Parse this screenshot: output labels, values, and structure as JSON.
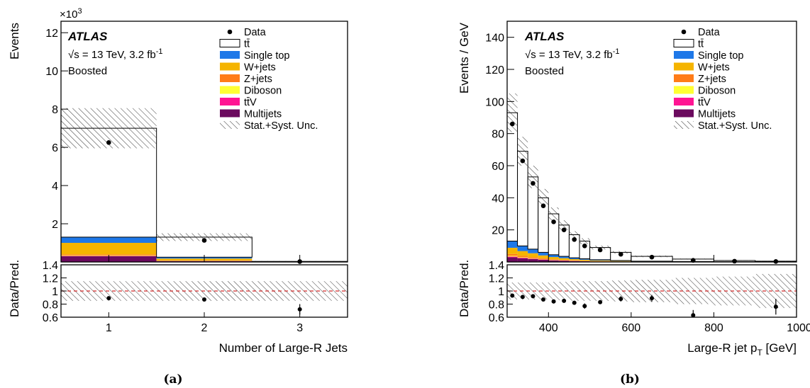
{
  "colors": {
    "single_top": "#1e78e8",
    "w_jets": "#f5b400",
    "z_jets": "#ff7c18",
    "diboson": "#ffff33",
    "ttv": "#ff1493",
    "multijets": "#6b0a5e",
    "ref_line": "#d42a2a"
  },
  "common": {
    "atlas": "ATLAS",
    "energy": "√s = 13 TeV, 3.2 fb",
    "energy_sup": "-1",
    "region": "Boosted",
    "ratio_ylabel": "Data/Pred.",
    "legend": [
      "Data",
      "tt̄",
      "Single top",
      "W+jets",
      "Z+jets",
      "Diboson",
      "tt̄V",
      "Multijets",
      "Stat.+Syst. Unc."
    ]
  },
  "chart_data": [
    {
      "type": "bar",
      "caption": "(a)",
      "xlabel": "Number of Large-R Jets",
      "ylabel": "Events",
      "y_multiplier": "×10",
      "y_multiplier_exp": "3",
      "xlim": [
        0.5,
        3.5
      ],
      "ylim": [
        0,
        12.6
      ],
      "xticks": [
        "1",
        "2",
        "3"
      ],
      "yticks": [
        "2",
        "4",
        "6",
        "8",
        "10",
        "12"
      ],
      "bins": [
        [
          0.5,
          1.5
        ],
        [
          1.5,
          2.5
        ],
        [
          2.5,
          3.5
        ]
      ],
      "stack": {
        "multijets": [
          0.3,
          0.05,
          0.0
        ],
        "ttv": [
          0.02,
          0.0,
          0.0
        ],
        "diboson": [
          0.03,
          0.01,
          0.0
        ],
        "z_jets": [
          0.05,
          0.02,
          0.0
        ],
        "w_jets": [
          0.6,
          0.1,
          0.01
        ],
        "single_top": [
          0.3,
          0.07,
          0.01
        ],
        "ttbar_total": [
          7.0,
          1.3,
          0.03
        ]
      },
      "unc": [
        1.05,
        0.2,
        0.02
      ],
      "data": [
        6.25,
        1.13,
        0.02
      ],
      "ratio": {
        "ylim": [
          0.6,
          1.4
        ],
        "yticks": [
          "0.6",
          "0.8",
          "1",
          "1.2",
          "1.4"
        ],
        "values": [
          0.89,
          0.87,
          0.72
        ],
        "errors": [
          0.01,
          0.02,
          0.08
        ],
        "unc": [
          0.15,
          0.15,
          0.15
        ]
      }
    },
    {
      "type": "bar",
      "caption": "(b)",
      "xlabel": "Large-R jet p",
      "xlabel_sub": "T",
      "xlabel_unit": " [GeV]",
      "ylabel": "Events / GeV",
      "xlim": [
        300,
        1000
      ],
      "ylim": [
        0,
        150
      ],
      "xticks": [
        "400",
        "600",
        "800",
        "1000"
      ],
      "yticks": [
        "20",
        "40",
        "60",
        "80",
        "100",
        "120",
        "140"
      ],
      "bins": [
        [
          300,
          325
        ],
        [
          325,
          350
        ],
        [
          350,
          375
        ],
        [
          375,
          400
        ],
        [
          400,
          425
        ],
        [
          425,
          450
        ],
        [
          450,
          475
        ],
        [
          475,
          500
        ],
        [
          500,
          550
        ],
        [
          550,
          600
        ],
        [
          600,
          700
        ],
        [
          700,
          800
        ],
        [
          800,
          900
        ],
        [
          900,
          1000
        ]
      ],
      "total": [
        93,
        69,
        53,
        40,
        30,
        23,
        17,
        13,
        9,
        6,
        3.5,
        1.8,
        0.9,
        0.5
      ],
      "bkg": [
        13,
        10,
        8,
        6,
        4.5,
        3.5,
        2.6,
        2.0,
        1.4,
        0.9,
        0.5,
        0.3,
        0.15,
        0.1
      ],
      "unc": [
        12,
        9,
        7,
        5.5,
        4,
        3,
        2.2,
        1.8,
        1.2,
        0.8,
        0.5,
        0.3,
        0.2,
        0.15
      ],
      "data": [
        86,
        63,
        49,
        35,
        25,
        20,
        14,
        10,
        7.5,
        4.8,
        3.0,
        1.0,
        0.5,
        0.3
      ],
      "ratio": {
        "ylim": [
          0.6,
          1.4
        ],
        "yticks": [
          "0.6",
          "0.8",
          "1",
          "1.2",
          "1.4"
        ],
        "values": [
          0.93,
          0.91,
          0.92,
          0.87,
          0.84,
          0.85,
          0.82,
          0.77,
          0.83,
          0.88,
          0.89,
          0.63,
          0.0,
          0.76
        ],
        "errors": [
          0.02,
          0.02,
          0.02,
          0.02,
          0.03,
          0.03,
          0.03,
          0.04,
          0.03,
          0.04,
          0.05,
          0.08,
          0.0,
          0.12
        ],
        "unc": [
          0.13,
          0.13,
          0.13,
          0.13,
          0.14,
          0.14,
          0.15,
          0.15,
          0.15,
          0.16,
          0.17,
          0.2,
          0.22,
          0.26
        ]
      }
    }
  ]
}
